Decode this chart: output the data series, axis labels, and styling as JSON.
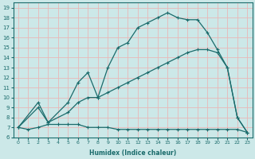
{
  "xlabel": "Humidex (Indice chaleur)",
  "ylabel": "",
  "xlim": [
    -0.5,
    23.5
  ],
  "ylim": [
    6,
    19.5
  ],
  "xticks": [
    0,
    1,
    2,
    3,
    4,
    5,
    6,
    7,
    8,
    9,
    10,
    11,
    12,
    13,
    14,
    15,
    16,
    17,
    18,
    19,
    20,
    21,
    22,
    23
  ],
  "yticks": [
    6,
    7,
    8,
    9,
    10,
    11,
    12,
    13,
    14,
    15,
    16,
    17,
    18,
    19
  ],
  "bg_color": "#cce8e8",
  "grid_color": "#e8b8b8",
  "line_color": "#1a6b6b",
  "line1_x": [
    0,
    1,
    2,
    3,
    4,
    5,
    6,
    7,
    8,
    9,
    10,
    11,
    12,
    13,
    14,
    15,
    16,
    17,
    18,
    19,
    20,
    21,
    22,
    23
  ],
  "line1_y": [
    7.0,
    6.8,
    7.0,
    7.3,
    7.3,
    7.3,
    7.3,
    7.0,
    7.0,
    7.0,
    6.8,
    6.8,
    6.8,
    6.8,
    6.8,
    6.8,
    6.8,
    6.8,
    6.8,
    6.8,
    6.8,
    6.8,
    6.8,
    6.5
  ],
  "line2_x": [
    0,
    2,
    3,
    5,
    6,
    7,
    8,
    9,
    10,
    11,
    12,
    13,
    14,
    15,
    16,
    17,
    18,
    19,
    20,
    21,
    22,
    23
  ],
  "line2_y": [
    7.0,
    9.0,
    7.5,
    8.5,
    9.5,
    10.0,
    10.0,
    10.5,
    11.0,
    11.5,
    12.0,
    12.5,
    13.0,
    13.5,
    14.0,
    14.5,
    14.8,
    14.8,
    14.5,
    13.0,
    8.0,
    6.5
  ],
  "line3_x": [
    0,
    2,
    3,
    5,
    6,
    7,
    8,
    9,
    10,
    11,
    12,
    13,
    14,
    15,
    16,
    17,
    18,
    19,
    20,
    21,
    22,
    23
  ],
  "line3_y": [
    7.0,
    9.5,
    7.5,
    9.5,
    11.5,
    12.5,
    10.0,
    13.0,
    15.0,
    15.5,
    17.0,
    17.5,
    18.0,
    18.5,
    18.0,
    17.8,
    17.8,
    16.5,
    14.8,
    13.0,
    8.0,
    6.5
  ]
}
